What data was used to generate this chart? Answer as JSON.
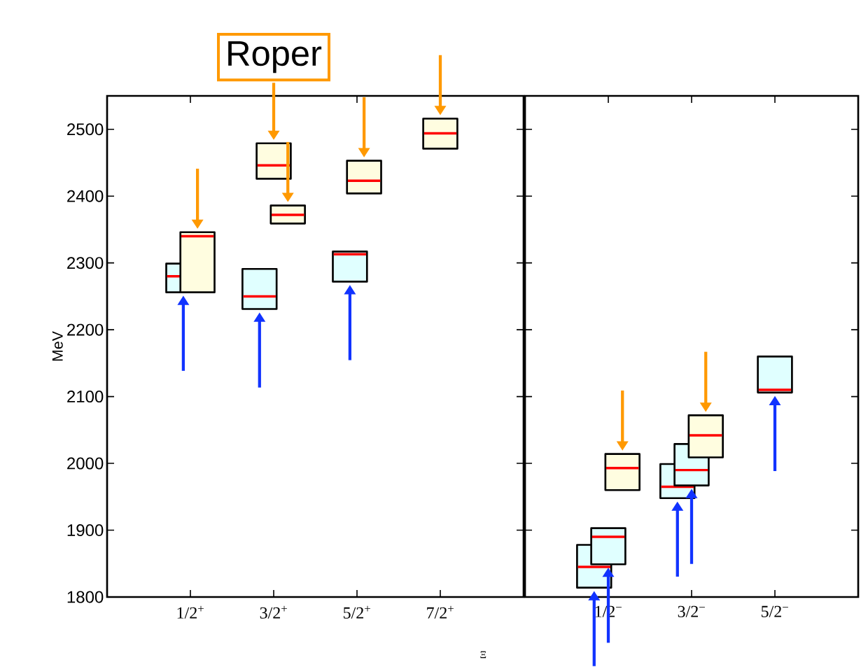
{
  "chart_data": [
    {
      "type": "box",
      "ylim": [
        1800,
        2550
      ],
      "xlabel": "Ξ",
      "ylabel": "MeV",
      "categories": [
        "1/2$^{+}$",
        "3/2$^{+}$",
        "5/2$^{+}$",
        "7/2$^{+}$"
      ],
      "yticks": [
        1800,
        1900,
        2000,
        2100,
        2200,
        2300,
        2400,
        2500
      ],
      "annotations": [
        {
          "text": "Roper",
          "x": "3/2$^{+}$",
          "y": 2446
        }
      ],
      "series": [
        {
          "color": "#e0ffff",
          "boxes": [
            {
              "low": 2256,
              "q1": 2256,
              "median": 2280,
              "q3": 2299,
              "high": 2299
            },
            {
              "low": 2231,
              "q1": 2231,
              "median": 2250,
              "q3": 2291,
              "high": 2291
            },
            {
              "low": 2272,
              "q1": 2272,
              "median": 2313,
              "q3": 2317,
              "high": 2317
            },
            null
          ]
        },
        {
          "color": "#fffde0",
          "boxes": [
            {
              "low": 2256,
              "q1": 2256,
              "median": 2340,
              "q3": 2346,
              "high": 2346
            },
            {
              "low": 2426,
              "q1": 2426,
              "median": 2446,
              "q3": 2479,
              "high": 2479
            },
            {
              "low": 2404,
              "q1": 2404,
              "median": 2423,
              "q3": 2453,
              "high": 2453
            },
            {
              "low": 2471,
              "q1": 2471,
              "median": 2494,
              "q3": 2516,
              "high": 2516
            }
          ]
        },
        {
          "color": "#fffde0",
          "boxes": [
            null,
            {
              "low": 2359,
              "q1": 2359,
              "median": 2372,
              "q3": 2386,
              "high": 2386
            },
            null,
            null
          ]
        }
      ]
    },
    {
      "type": "box",
      "ylim": [
        1800,
        2550
      ],
      "tick_labels": "x",
      "categories": [
        "1/2$^{−}$",
        "3/2$^{−}$",
        "5/2$^{−}$"
      ],
      "yticks": [
        1800,
        1900,
        2000,
        2100,
        2200,
        2300,
        2400,
        2500
      ],
      "series": [
        {
          "color": "#e0ffff",
          "boxes": [
            {
              "low": 1814,
              "q1": 1814,
              "median": 1845,
              "q3": 1878,
              "high": 1878
            },
            {
              "low": 1948,
              "q1": 1948,
              "median": 1965,
              "q3": 1999,
              "high": 1999
            },
            {
              "low": 2106,
              "q1": 2106,
              "median": 2110,
              "q3": 2160,
              "high": 2160
            }
          ]
        },
        {
          "color": "#e0ffff",
          "boxes": [
            {
              "low": 1849,
              "q1": 1849,
              "median": 1890,
              "q3": 1903,
              "high": 1903
            },
            {
              "low": 1967,
              "q1": 1967,
              "median": 1990,
              "q3": 2029,
              "high": 2029
            },
            null
          ]
        },
        {
          "color": "#fffde0",
          "boxes": [
            {
              "low": 1960,
              "q1": 1960,
              "median": 1993,
              "q3": 2014,
              "high": 2014
            },
            {
              "low": 2009,
              "q1": 2009,
              "median": 2042,
              "q3": 2072,
              "high": 2072
            },
            null
          ]
        }
      ]
    }
  ]
}
